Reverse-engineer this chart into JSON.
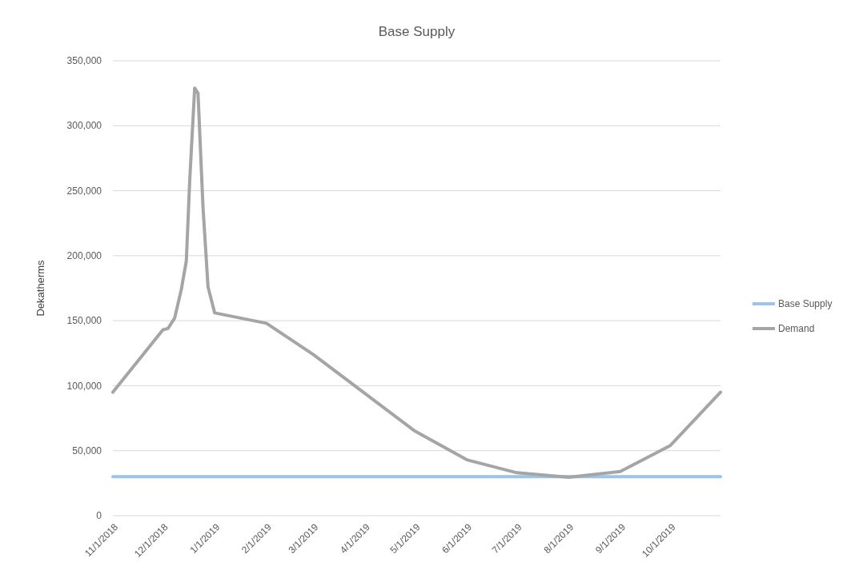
{
  "chart_data": {
    "type": "line",
    "title": "Base Supply",
    "ylabel": "Dekatherms",
    "xlim": [
      "2018-11-01",
      "2019-10-31"
    ],
    "ylim": [
      0,
      350000
    ],
    "yticks": [
      {
        "value": 0,
        "label": "0"
      },
      {
        "value": 50000,
        "label": "50,000"
      },
      {
        "value": 100000,
        "label": "100,000"
      },
      {
        "value": 150000,
        "label": "150,000"
      },
      {
        "value": 200000,
        "label": "200,000"
      },
      {
        "value": 250000,
        "label": "250,000"
      },
      {
        "value": 300000,
        "label": "300,000"
      },
      {
        "value": 350000,
        "label": "350,000"
      }
    ],
    "xticks": [
      {
        "value": "2018-11-01",
        "label": "11/1/2018"
      },
      {
        "value": "2018-12-01",
        "label": "12/1/2018"
      },
      {
        "value": "2019-01-01",
        "label": "1/1/2019"
      },
      {
        "value": "2019-02-01",
        "label": "2/1/2019"
      },
      {
        "value": "2019-03-01",
        "label": "3/1/2019"
      },
      {
        "value": "2019-04-01",
        "label": "4/1/2019"
      },
      {
        "value": "2019-05-01",
        "label": "5/1/2019"
      },
      {
        "value": "2019-06-01",
        "label": "6/1/2019"
      },
      {
        "value": "2019-07-01",
        "label": "7/1/2019"
      },
      {
        "value": "2019-08-01",
        "label": "8/1/2019"
      },
      {
        "value": "2019-09-01",
        "label": "9/1/2019"
      },
      {
        "value": "2019-10-01",
        "label": "10/1/2019"
      }
    ],
    "grid": "y",
    "legend": "right",
    "marker": "none",
    "line_style": "solid",
    "series": [
      {
        "name": "Base Supply",
        "color": "#9dc3e6",
        "x": [
          "2018-11-01",
          "2019-10-31"
        ],
        "values": [
          30000,
          30000
        ]
      },
      {
        "name": "Demand",
        "color": "#a5a5a5",
        "x": [
          "2018-11-01",
          "2018-12-01",
          "2018-12-04",
          "2018-12-08",
          "2018-12-12",
          "2018-12-15",
          "2018-12-17",
          "2018-12-20",
          "2018-12-22",
          "2018-12-25",
          "2018-12-28",
          "2019-01-01",
          "2019-02-01",
          "2019-03-01",
          "2019-04-01",
          "2019-05-01",
          "2019-06-01",
          "2019-07-01",
          "2019-08-01",
          "2019-09-01",
          "2019-10-01",
          "2019-10-31"
        ],
        "values": [
          95000,
          143000,
          144000,
          152000,
          174000,
          196000,
          257000,
          329000,
          325000,
          237000,
          176000,
          156000,
          148000,
          124000,
          94000,
          65000,
          43000,
          33000,
          29500,
          34000,
          54000,
          95000
        ]
      }
    ]
  }
}
